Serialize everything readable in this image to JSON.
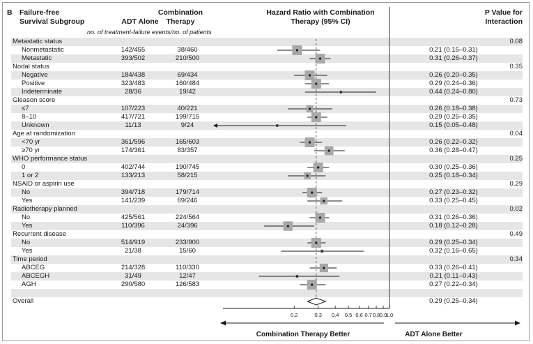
{
  "panel_label": "B",
  "headers": {
    "subgroup": "Failure-free Survival Subgroup",
    "adt": "ADT Alone",
    "combination": "Combination Therapy",
    "hr": "Hazard Ratio with Combination Therapy (95% CI)",
    "p": "P Value for Interaction",
    "events_note": "no. of treatment-failure events/no. of patients"
  },
  "footer": {
    "left": "Combination Therapy Better",
    "right": "ADT Alone Better"
  },
  "colors": {
    "shade": "#e6e6e6",
    "box": "#a8a8a8",
    "ink": "#1a1a1a",
    "reference_line": "#555555"
  },
  "chart_data": {
    "type": "forest",
    "title": "Hazard Ratio with Combination Therapy (95% CI)",
    "x_scale": "log",
    "xlim": [
      0.06,
      1.0
    ],
    "x_ticks": [
      0.2,
      0.3,
      0.4,
      0.5,
      0.6,
      0.7,
      0.8,
      0.9,
      1.0
    ],
    "x_tick_labels": [
      "0.2",
      "0.3",
      "0.4",
      "0.5",
      "0.6",
      "0.7",
      "0.8",
      "0.9",
      "1.0"
    ],
    "reference_lines": [
      1.0,
      0.29
    ],
    "rows": [
      {
        "label": "Metastatic status",
        "kind": "group",
        "p": "0.08"
      },
      {
        "label": "Nonmetastatic",
        "kind": "sub",
        "adt": "142/455",
        "comb": "38/460",
        "hr": 0.21,
        "lo": 0.15,
        "hi": 0.31,
        "hr_text": "0.21 (0.15–0.31)"
      },
      {
        "label": "Metastatic",
        "kind": "sub",
        "adt": "393/502",
        "comb": "210/500",
        "hr": 0.31,
        "lo": 0.26,
        "hi": 0.37,
        "hr_text": "0.31 (0.26–0.37)"
      },
      {
        "label": "Nodal status",
        "kind": "group",
        "p": "0.35"
      },
      {
        "label": "Negative",
        "kind": "sub",
        "adt": "184/438",
        "comb": "69/434",
        "hr": 0.26,
        "lo": 0.2,
        "hi": 0.35,
        "hr_text": "0.26 (0.20–0.35)"
      },
      {
        "label": "Positive",
        "kind": "sub",
        "adt": "323/483",
        "comb": "160/484",
        "hr": 0.29,
        "lo": 0.24,
        "hi": 0.36,
        "hr_text": "0.29 (0.24–0.36)"
      },
      {
        "label": "Indeterminate",
        "kind": "sub",
        "adt": "28/36",
        "comb": "19/42",
        "hr": 0.44,
        "lo": 0.24,
        "hi": 0.8,
        "hr_text": "0.44 (0.24–0.80)"
      },
      {
        "label": "Gleason score",
        "kind": "group",
        "p": "0.73"
      },
      {
        "label": "≤7",
        "kind": "sub",
        "adt": "107/223",
        "comb": "40/221",
        "hr": 0.26,
        "lo": 0.18,
        "hi": 0.38,
        "hr_text": "0.26 (0.18–0.38)"
      },
      {
        "label": "8–10",
        "kind": "sub",
        "adt": "417/721",
        "comb": "199/715",
        "hr": 0.29,
        "lo": 0.25,
        "hi": 0.35,
        "hr_text": "0.29 (0.25–0.35)"
      },
      {
        "label": "Unknown",
        "kind": "sub",
        "adt": "11/13",
        "comb": "9/24",
        "hr": 0.15,
        "lo": 0.05,
        "hi": 0.48,
        "hr_text": "0.15 (0.05–0.48)"
      },
      {
        "label": "Age at randomization",
        "kind": "group",
        "p": "0.04"
      },
      {
        "label": "<70 yr",
        "kind": "sub",
        "adt": "361/596",
        "comb": "165/603",
        "hr": 0.26,
        "lo": 0.22,
        "hi": 0.32,
        "hr_text": "0.26 (0.22–0.32)"
      },
      {
        "label": "≥70 yr",
        "kind": "sub",
        "adt": "174/361",
        "comb": "83/357",
        "hr": 0.36,
        "lo": 0.28,
        "hi": 0.47,
        "hr_text": "0.36 (0.28–0.47)"
      },
      {
        "label": "WHO performance status",
        "kind": "group",
        "p": "0.25"
      },
      {
        "label": "0",
        "kind": "sub",
        "adt": "402/744",
        "comb": "190/745",
        "hr": 0.3,
        "lo": 0.25,
        "hi": 0.36,
        "hr_text": "0.30 (0.25–0.36)"
      },
      {
        "label": "1 or 2",
        "kind": "sub",
        "adt": "133/213",
        "comb": "58/215",
        "hr": 0.25,
        "lo": 0.18,
        "hi": 0.34,
        "hr_text": "0.25 (0.18–0.34)"
      },
      {
        "label": "NSAID or aspirin use",
        "kind": "group",
        "p": "0.29"
      },
      {
        "label": "No",
        "kind": "sub",
        "adt": "394/718",
        "comb": "179/714",
        "hr": 0.27,
        "lo": 0.23,
        "hi": 0.32,
        "hr_text": "0.27 (0.23–0.32)"
      },
      {
        "label": "Yes",
        "kind": "sub",
        "adt": "141/239",
        "comb": "69/246",
        "hr": 0.33,
        "lo": 0.25,
        "hi": 0.45,
        "hr_text": "0.33 (0.25–0.45)"
      },
      {
        "label": "Radiotherapy planned",
        "kind": "group",
        "p": "0.02"
      },
      {
        "label": "No",
        "kind": "sub",
        "adt": "425/561",
        "comb": "224/564",
        "hr": 0.31,
        "lo": 0.26,
        "hi": 0.36,
        "hr_text": "0.31 (0.26–0.36)"
      },
      {
        "label": "Yes",
        "kind": "sub",
        "adt": "110/396",
        "comb": "24/396",
        "hr": 0.18,
        "lo": 0.12,
        "hi": 0.28,
        "hr_text": "0.18 (0.12–0.28)"
      },
      {
        "label": "Recurrent disease",
        "kind": "group",
        "p": "0.49"
      },
      {
        "label": "No",
        "kind": "sub",
        "adt": "514/919",
        "comb": "233/900",
        "hr": 0.29,
        "lo": 0.25,
        "hi": 0.34,
        "hr_text": "0.29 (0.25–0.34)"
      },
      {
        "label": "Yes",
        "kind": "sub",
        "adt": "21/38",
        "comb": "15/60",
        "hr": 0.32,
        "lo": 0.16,
        "hi": 0.65,
        "hr_text": "0.32 (0.16–0.65)"
      },
      {
        "label": "Time period",
        "kind": "group",
        "p": "0.34"
      },
      {
        "label": "ABCEG",
        "kind": "sub",
        "adt": "214/328",
        "comb": "110/330",
        "hr": 0.33,
        "lo": 0.26,
        "hi": 0.41,
        "hr_text": "0.33 (0.26–0.41)"
      },
      {
        "label": "ABCEGH",
        "kind": "sub",
        "adt": "31/49",
        "comb": "12/47",
        "hr": 0.21,
        "lo": 0.11,
        "hi": 0.43,
        "hr_text": "0.21 (0.11–0.43)"
      },
      {
        "label": "AGH",
        "kind": "sub",
        "adt": "290/580",
        "comb": "126/583",
        "hr": 0.27,
        "lo": 0.22,
        "hi": 0.34,
        "hr_text": "0.27 (0.22–0.34)"
      },
      {
        "label": "",
        "kind": "spacer"
      },
      {
        "label": "Overall",
        "kind": "overall",
        "hr": 0.29,
        "lo": 0.25,
        "hi": 0.34,
        "hr_text": "0.29 (0.25–0.34)"
      }
    ]
  }
}
